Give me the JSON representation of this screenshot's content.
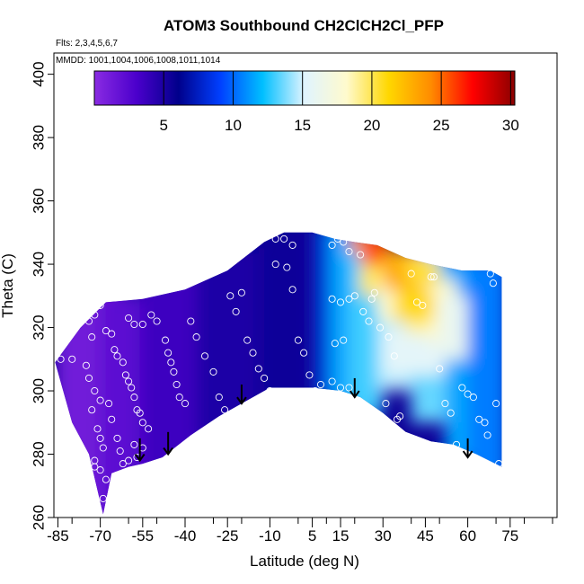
{
  "chart_data": {
    "type": "heatmap",
    "title": "ATOM3 Southbound CH2ClCH2Cl_PFP",
    "flights_label": "Flts: 2,3,4,5,6,7",
    "dates_label": "MMDD: 1001,1004,1006,1008,1011,1014",
    "xlabel": "Latitude (deg N)",
    "ylabel": "Theta (C)",
    "xlim": [
      -88,
      90
    ],
    "ylim": [
      260,
      405
    ],
    "x_tick_labels": [
      "-85",
      "-70",
      "-55",
      "-40",
      "-25",
      "-10",
      "5",
      "15",
      "30",
      "45",
      "60",
      "75"
    ],
    "x_tick_values": [
      -85,
      -70,
      -55,
      -40,
      -25,
      -10,
      5,
      15,
      30,
      45,
      60,
      75
    ],
    "y_tick_values": [
      260,
      280,
      300,
      320,
      340,
      360,
      380,
      400
    ],
    "y_tick_labels": [
      "260",
      "280",
      "300",
      "320",
      "340",
      "360",
      "380",
      "400"
    ],
    "colorbar": {
      "range": [
        0,
        30.3
      ],
      "tick_values": [
        5,
        10,
        15,
        20,
        25,
        30
      ],
      "tick_labels": [
        "5",
        "10",
        "15",
        "20",
        "25",
        "30"
      ],
      "colors": [
        "#8a2be2",
        "#4b00cc",
        "#00008b",
        "#0040ff",
        "#00bfff",
        "#e0f4ff",
        "#fffacd",
        "#ffd700",
        "#ff8c00",
        "#ff0000",
        "#8b0000"
      ]
    },
    "surface_boundary_top": [
      [
        -86,
        309
      ],
      [
        -77,
        320
      ],
      [
        -68,
        328
      ],
      [
        -55,
        329
      ],
      [
        -40,
        332
      ],
      [
        -25,
        338
      ],
      [
        -12,
        347
      ],
      [
        -5,
        350
      ],
      [
        5,
        350
      ],
      [
        13,
        348
      ],
      [
        20,
        347
      ],
      [
        28,
        346
      ],
      [
        38,
        342
      ],
      [
        47,
        340
      ],
      [
        58,
        338
      ],
      [
        68,
        338
      ],
      [
        72,
        336
      ]
    ],
    "surface_boundary_bottom": [
      [
        72,
        276
      ],
      [
        63,
        280
      ],
      [
        55,
        283
      ],
      [
        47,
        284
      ],
      [
        38,
        287
      ],
      [
        30,
        293
      ],
      [
        22,
        298
      ],
      [
        15,
        300
      ],
      [
        5,
        301
      ],
      [
        -10,
        301
      ],
      [
        -20,
        296
      ],
      [
        -28,
        292
      ],
      [
        -38,
        286
      ],
      [
        -48,
        279
      ],
      [
        -55,
        277
      ],
      [
        -60,
        276
      ],
      [
        -66,
        274
      ],
      [
        -69,
        261
      ],
      [
        -74,
        280
      ],
      [
        -80,
        290
      ]
    ],
    "samples": [
      [
        -84,
        310
      ],
      [
        -80,
        310
      ],
      [
        -75,
        308
      ],
      [
        -74,
        304
      ],
      [
        -72,
        300
      ],
      [
        -70,
        297
      ],
      [
        -73,
        294
      ],
      [
        -71,
        288
      ],
      [
        -70,
        285
      ],
      [
        -69,
        282
      ],
      [
        -72,
        276
      ],
      [
        -70,
        275
      ],
      [
        -69,
        266
      ],
      [
        -72,
        278
      ],
      [
        -68,
        272
      ],
      [
        -67,
        296
      ],
      [
        -66,
        291
      ],
      [
        -64,
        285
      ],
      [
        -63,
        281
      ],
      [
        -62,
        277
      ],
      [
        -60,
        278
      ],
      [
        -58,
        283
      ],
      [
        -57,
        279
      ],
      [
        -55,
        282
      ],
      [
        -74,
        322
      ],
      [
        -73,
        317
      ],
      [
        -72,
        324
      ],
      [
        -70,
        327
      ],
      [
        -68,
        319
      ],
      [
        -66,
        318
      ],
      [
        -65,
        313
      ],
      [
        -64,
        311
      ],
      [
        -62,
        309
      ],
      [
        -61,
        305
      ],
      [
        -60,
        303
      ],
      [
        -59,
        301
      ],
      [
        -58,
        298
      ],
      [
        -57,
        294
      ],
      [
        -56,
        293
      ],
      [
        -55,
        290
      ],
      [
        -53,
        288
      ],
      [
        -60,
        323
      ],
      [
        -58,
        321
      ],
      [
        -55,
        321
      ],
      [
        -52,
        324
      ],
      [
        -50,
        322
      ],
      [
        -47,
        316
      ],
      [
        -46,
        312
      ],
      [
        -45,
        309
      ],
      [
        -44,
        306
      ],
      [
        -43,
        302
      ],
      [
        -42,
        298
      ],
      [
        -40,
        296
      ],
      [
        -38,
        322
      ],
      [
        -36,
        317
      ],
      [
        -33,
        311
      ],
      [
        -30,
        306
      ],
      [
        -28,
        298
      ],
      [
        -26,
        294
      ],
      [
        -24,
        292
      ],
      [
        -22,
        288
      ],
      [
        -24,
        330
      ],
      [
        -22,
        325
      ],
      [
        -20,
        331
      ],
      [
        -18,
        316
      ],
      [
        -16,
        312
      ],
      [
        -14,
        307
      ],
      [
        -12,
        304
      ],
      [
        -10,
        300
      ],
      [
        -8,
        348
      ],
      [
        -5,
        348
      ],
      [
        -2,
        346
      ],
      [
        -8,
        340
      ],
      [
        -4,
        339
      ],
      [
        -2,
        332
      ],
      [
        0,
        316
      ],
      [
        2,
        312
      ],
      [
        4,
        305
      ],
      [
        6,
        300
      ],
      [
        8,
        302
      ],
      [
        12,
        346
      ],
      [
        14,
        348
      ],
      [
        16,
        347
      ],
      [
        18,
        344
      ],
      [
        22,
        343
      ],
      [
        12,
        329
      ],
      [
        15,
        328
      ],
      [
        18,
        329
      ],
      [
        20,
        330
      ],
      [
        13,
        315
      ],
      [
        16,
        316
      ],
      [
        12,
        303
      ],
      [
        15,
        301
      ],
      [
        18,
        301
      ],
      [
        23,
        325
      ],
      [
        25,
        322
      ],
      [
        26,
        329
      ],
      [
        27,
        331
      ],
      [
        29,
        320
      ],
      [
        32,
        317
      ],
      [
        34,
        311
      ],
      [
        31,
        296
      ],
      [
        35,
        291
      ],
      [
        36,
        292
      ],
      [
        34,
        285
      ],
      [
        40,
        337
      ],
      [
        42,
        328
      ],
      [
        44,
        327
      ],
      [
        47,
        336
      ],
      [
        48,
        336
      ],
      [
        50,
        307
      ],
      [
        52,
        296
      ],
      [
        54,
        293
      ],
      [
        56,
        283
      ],
      [
        58,
        301
      ],
      [
        60,
        299
      ],
      [
        62,
        298
      ],
      [
        64,
        291
      ],
      [
        66,
        290
      ],
      [
        67,
        286
      ],
      [
        68,
        337
      ],
      [
        69,
        334
      ],
      [
        70,
        296
      ],
      [
        71,
        277
      ]
    ],
    "arrows": [
      {
        "lat": -56,
        "theta_top": 285,
        "theta_tip": 278
      },
      {
        "lat": -46,
        "theta_top": 287,
        "theta_tip": 280
      },
      {
        "lat": -20,
        "theta_top": 302,
        "theta_tip": 296
      },
      {
        "lat": 20,
        "theta_top": 304,
        "theta_tip": 298
      },
      {
        "lat": 60,
        "theta_top": 285,
        "theta_tip": 279
      }
    ],
    "field_regions": [
      {
        "name": "west-purple",
        "value": 1.5,
        "lat": [
          -86,
          -58
        ]
      },
      {
        "name": "west-violet-blue",
        "value": 3.5,
        "lat": [
          -58,
          -30
        ]
      },
      {
        "name": "central-dark-blue",
        "value": 5.5,
        "lat": [
          -30,
          8
        ]
      },
      {
        "name": "blue-transition",
        "value": 9.5,
        "lat": [
          8,
          15
        ]
      },
      {
        "name": "light-blue",
        "value": 13.0,
        "lat": [
          15,
          35
        ]
      },
      {
        "name": "yellow-orange-upper",
        "value": 21.0,
        "lat": [
          28,
          52
        ]
      },
      {
        "name": "red-maximum",
        "value": 25.5,
        "lat": [
          20,
          40
        ]
      },
      {
        "name": "east-light-blue",
        "value": 11.0,
        "lat": [
          52,
          72
        ]
      }
    ]
  }
}
